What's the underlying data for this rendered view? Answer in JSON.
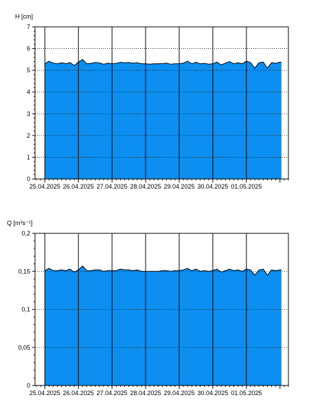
{
  "chart_data": [
    {
      "type": "area",
      "title": "",
      "ylabel": "H [cm]",
      "xlabel": "",
      "ylim": [
        0,
        7
      ],
      "yticks": [
        0,
        1,
        2,
        3,
        4,
        5,
        6,
        7
      ],
      "ytick_labels": [
        "0",
        "1",
        "2",
        "3",
        "4",
        "5",
        "6",
        "7"
      ],
      "xlim": [
        "2025-04-24T17:00",
        "2025-05-02T06:00"
      ],
      "date_ticks": [
        "2025-04-25",
        "2025-04-26",
        "2025-04-27",
        "2025-04-28",
        "2025-04-29",
        "2025-04-30",
        "2025-05-01"
      ],
      "date_tick_labels": [
        "25.04.2025",
        "26.04.2025",
        "27.04.2025",
        "28.04.2025",
        "29.04.2025",
        "30.04.2025",
        "01.05.2025"
      ],
      "grid": "dotted-horizontal, solid-vertical",
      "fill_color": "#0c8ff0",
      "line_color": "#000000",
      "x": [
        "2025-04-25T00:00",
        "2025-04-25T03:00",
        "2025-04-25T06:00",
        "2025-04-25T09:00",
        "2025-04-25T12:00",
        "2025-04-25T15:00",
        "2025-04-25T18:00",
        "2025-04-25T21:00",
        "2025-04-26T00:00",
        "2025-04-26T03:00",
        "2025-04-26T06:00",
        "2025-04-26T09:00",
        "2025-04-26T12:00",
        "2025-04-26T15:00",
        "2025-04-26T18:00",
        "2025-04-26T21:00",
        "2025-04-27T00:00",
        "2025-04-27T03:00",
        "2025-04-27T06:00",
        "2025-04-27T09:00",
        "2025-04-27T12:00",
        "2025-04-27T15:00",
        "2025-04-27T18:00",
        "2025-04-27T21:00",
        "2025-04-28T00:00",
        "2025-04-28T03:00",
        "2025-04-28T06:00",
        "2025-04-28T09:00",
        "2025-04-28T12:00",
        "2025-04-28T15:00",
        "2025-04-28T18:00",
        "2025-04-28T21:00",
        "2025-04-29T00:00",
        "2025-04-29T03:00",
        "2025-04-29T06:00",
        "2025-04-29T09:00",
        "2025-04-29T12:00",
        "2025-04-29T15:00",
        "2025-04-29T18:00",
        "2025-04-29T21:00",
        "2025-04-30T00:00",
        "2025-04-30T03:00",
        "2025-04-30T06:00",
        "2025-04-30T09:00",
        "2025-04-30T12:00",
        "2025-04-30T15:00",
        "2025-04-30T18:00",
        "2025-04-30T21:00",
        "2025-05-01T00:00",
        "2025-05-01T03:00",
        "2025-05-01T06:00",
        "2025-05-01T09:00",
        "2025-05-01T12:00",
        "2025-05-01T15:00",
        "2025-05-01T18:00",
        "2025-05-01T21:00",
        "2025-05-02T00:00",
        "2025-05-02T01:00"
      ],
      "values": [
        5.3,
        5.42,
        5.33,
        5.3,
        5.35,
        5.3,
        5.36,
        5.22,
        5.38,
        5.5,
        5.3,
        5.32,
        5.36,
        5.34,
        5.28,
        5.33,
        5.3,
        5.32,
        5.37,
        5.35,
        5.36,
        5.33,
        5.35,
        5.3,
        5.3,
        5.28,
        5.3,
        5.3,
        5.31,
        5.33,
        5.28,
        5.3,
        5.3,
        5.33,
        5.42,
        5.3,
        5.37,
        5.3,
        5.32,
        5.28,
        5.3,
        5.38,
        5.25,
        5.33,
        5.4,
        5.3,
        5.35,
        5.3,
        5.42,
        5.36,
        5.1,
        5.35,
        5.38,
        5.1,
        5.35,
        5.32,
        5.38,
        5.36
      ]
    },
    {
      "type": "area",
      "title": "",
      "ylabel": "Q [m³s⁻¹]",
      "xlabel": "",
      "ylim": [
        0,
        0.2
      ],
      "yticks": [
        0,
        0.05,
        0.1,
        0.15,
        0.2
      ],
      "ytick_labels": [
        "0",
        "0,05",
        "0,1",
        "0,15",
        "0,2"
      ],
      "xlim": [
        "2025-04-24T17:00",
        "2025-05-02T06:00"
      ],
      "date_ticks": [
        "2025-04-25",
        "2025-04-26",
        "2025-04-27",
        "2025-04-28",
        "2025-04-29",
        "2025-04-30",
        "2025-05-01"
      ],
      "date_tick_labels": [
        "25.04.2025",
        "26.04.2025",
        "27.04.2025",
        "28.04.2025",
        "29.04.2025",
        "30.04.2025",
        "01.05.2025"
      ],
      "grid": "dotted-horizontal, solid-vertical",
      "fill_color": "#0c8ff0",
      "line_color": "#000000",
      "x": [
        "2025-04-25T00:00",
        "2025-04-25T03:00",
        "2025-04-25T06:00",
        "2025-04-25T09:00",
        "2025-04-25T12:00",
        "2025-04-25T15:00",
        "2025-04-25T18:00",
        "2025-04-25T21:00",
        "2025-04-26T00:00",
        "2025-04-26T03:00",
        "2025-04-26T06:00",
        "2025-04-26T09:00",
        "2025-04-26T12:00",
        "2025-04-26T15:00",
        "2025-04-26T18:00",
        "2025-04-26T21:00",
        "2025-04-27T00:00",
        "2025-04-27T03:00",
        "2025-04-27T06:00",
        "2025-04-27T09:00",
        "2025-04-27T12:00",
        "2025-04-27T15:00",
        "2025-04-27T18:00",
        "2025-04-27T21:00",
        "2025-04-28T00:00",
        "2025-04-28T03:00",
        "2025-04-28T06:00",
        "2025-04-28T09:00",
        "2025-04-28T12:00",
        "2025-04-28T15:00",
        "2025-04-28T18:00",
        "2025-04-28T21:00",
        "2025-04-29T00:00",
        "2025-04-29T03:00",
        "2025-04-29T06:00",
        "2025-04-29T09:00",
        "2025-04-29T12:00",
        "2025-04-29T15:00",
        "2025-04-29T18:00",
        "2025-04-29T21:00",
        "2025-04-30T00:00",
        "2025-04-30T03:00",
        "2025-04-30T06:00",
        "2025-04-30T09:00",
        "2025-04-30T12:00",
        "2025-04-30T15:00",
        "2025-04-30T18:00",
        "2025-04-30T21:00",
        "2025-05-01T00:00",
        "2025-05-01T03:00",
        "2025-05-01T06:00",
        "2025-05-01T09:00",
        "2025-05-01T12:00",
        "2025-05-01T15:00",
        "2025-05-01T18:00",
        "2025-05-01T21:00",
        "2025-05-02T00:00",
        "2025-05-02T01:00"
      ],
      "values": [
        0.151,
        0.154,
        0.151,
        0.151,
        0.152,
        0.151,
        0.153,
        0.149,
        0.152,
        0.157,
        0.151,
        0.151,
        0.152,
        0.152,
        0.15,
        0.151,
        0.151,
        0.151,
        0.153,
        0.152,
        0.152,
        0.151,
        0.152,
        0.15,
        0.15,
        0.15,
        0.15,
        0.15,
        0.151,
        0.151,
        0.15,
        0.151,
        0.151,
        0.152,
        0.154,
        0.151,
        0.153,
        0.15,
        0.151,
        0.15,
        0.151,
        0.153,
        0.149,
        0.151,
        0.153,
        0.151,
        0.152,
        0.15,
        0.153,
        0.152,
        0.145,
        0.152,
        0.153,
        0.145,
        0.152,
        0.151,
        0.152,
        0.152
      ]
    }
  ]
}
